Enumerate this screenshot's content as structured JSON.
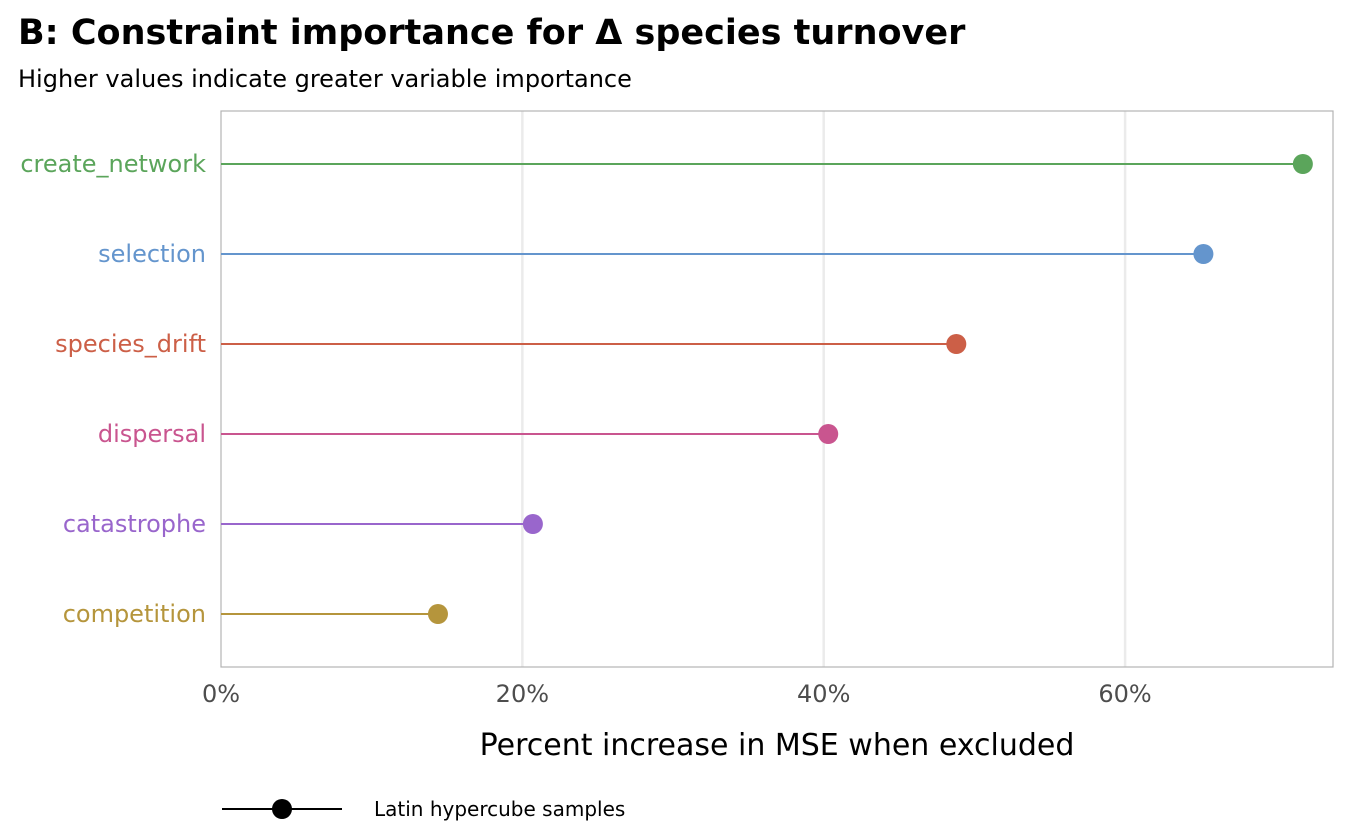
{
  "chart_data": {
    "type": "lollipop",
    "title": "B: Constraint importance for Δ species turnover",
    "subtitle": "Higher values indicate greater variable importance",
    "xlabel": "Percent increase in MSE when excluded",
    "ylabel": "",
    "xlim": [
      0,
      73.8
    ],
    "xticks": [
      0,
      20,
      40,
      60
    ],
    "xtick_labels": [
      "0%",
      "20%",
      "40%",
      "60%"
    ],
    "grid": "vertical major",
    "categories": [
      "create_network",
      "selection",
      "species_drift",
      "dispersal",
      "catastrophe",
      "competition"
    ],
    "values": [
      71.8,
      65.2,
      48.8,
      40.3,
      20.7,
      14.4
    ],
    "colors": [
      "#5ba55b",
      "#6495cd",
      "#cc5f47",
      "#c9558f",
      "#9966cc",
      "#b5953c"
    ],
    "legend": {
      "position": "bottom",
      "entries": [
        "Latin hypercube samples"
      ]
    }
  }
}
